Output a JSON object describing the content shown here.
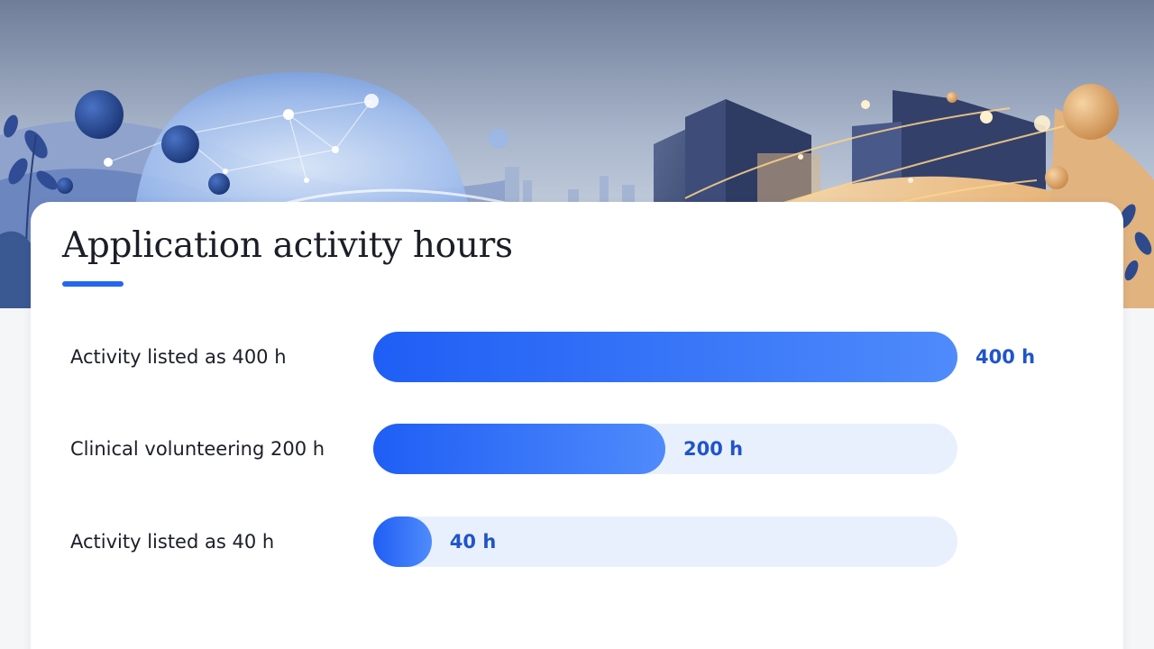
{
  "card": {
    "title": "Application activity hours"
  },
  "colors": {
    "accent": "#2566f0",
    "bar_fill_start": "#1f5ef5",
    "bar_fill_end": "#4f8bfb",
    "track": "#e9f0fd",
    "value_text": "#1f55c9"
  },
  "chart_data": {
    "type": "bar",
    "orientation": "horizontal",
    "categories": [
      "Activity listed as 400 h",
      "Clinical volunteering 200 h",
      "Activity listed as 40 h"
    ],
    "values": [
      400,
      200,
      40
    ],
    "value_labels": [
      "400 h",
      "200 h",
      "40 h"
    ],
    "title": "Application activity hours",
    "xlim": [
      0,
      400
    ],
    "grid": false,
    "legend": "none"
  }
}
